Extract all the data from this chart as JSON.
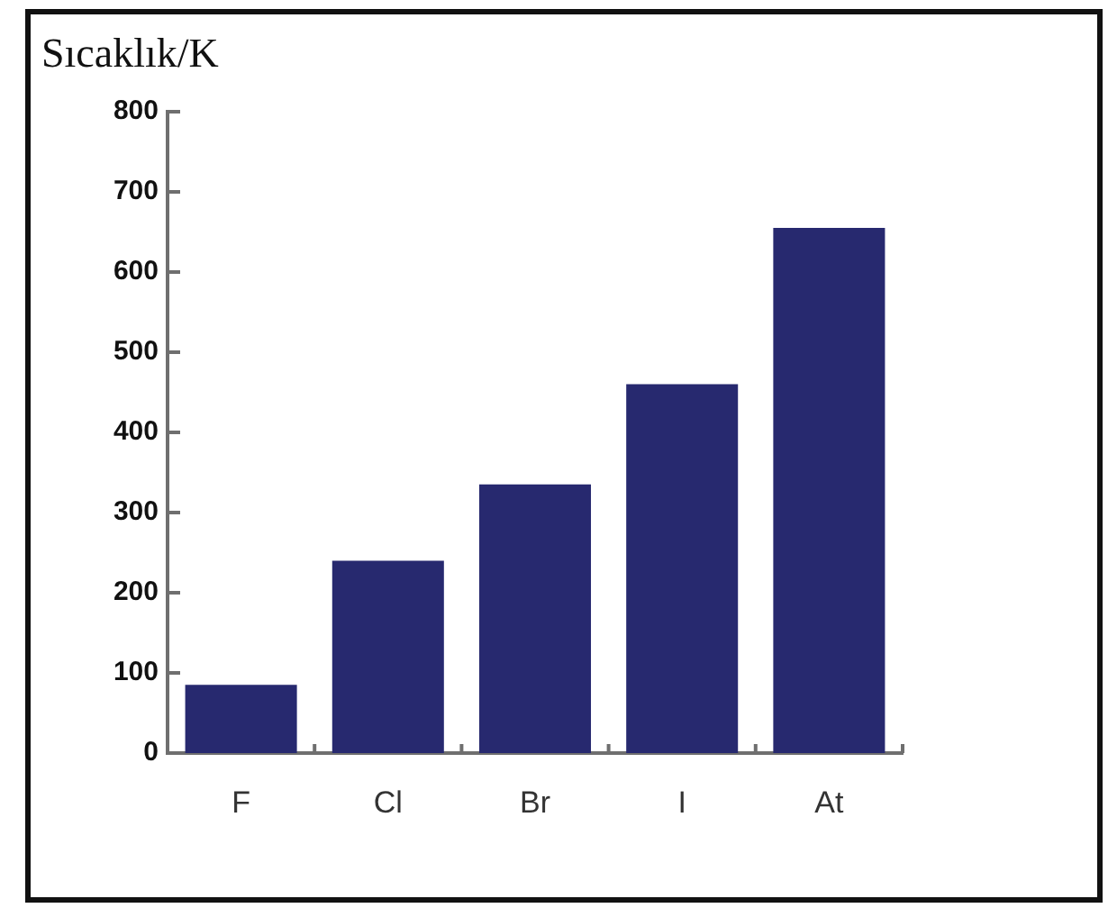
{
  "chart_data": {
    "type": "bar",
    "ylabel": "Sıcaklık/K",
    "categories": [
      "F",
      "Cl",
      "Br",
      "I",
      "At"
    ],
    "values": [
      85,
      240,
      335,
      460,
      655
    ],
    "color": "#27296f",
    "ylim": [
      0,
      800
    ],
    "yticks": [
      0,
      100,
      200,
      300,
      400,
      500,
      600,
      700,
      800
    ],
    "grid": false,
    "legend": false
  }
}
